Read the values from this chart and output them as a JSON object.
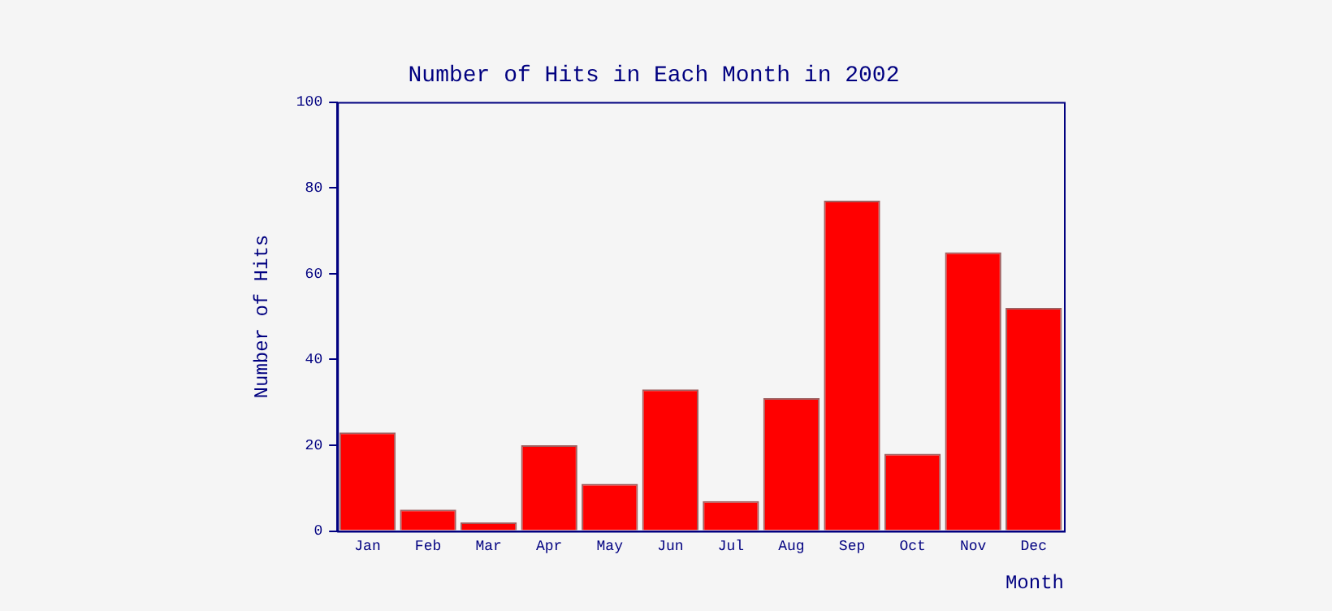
{
  "chart_data": {
    "type": "bar",
    "title": "Number of Hits in Each Month in 2002",
    "xlabel": "Month",
    "ylabel": "Number of Hits",
    "categories": [
      "Jan",
      "Feb",
      "Mar",
      "Apr",
      "May",
      "Jun",
      "Jul",
      "Aug",
      "Sep",
      "Oct",
      "Nov",
      "Dec"
    ],
    "values": [
      23,
      5,
      2,
      20,
      11,
      33,
      7,
      31,
      77,
      18,
      65,
      52
    ],
    "color": "#ff0000",
    "ylim": [
      0,
      100
    ],
    "yticks": [
      0,
      20,
      40,
      60,
      80,
      100
    ],
    "grid": false,
    "legend": false
  }
}
